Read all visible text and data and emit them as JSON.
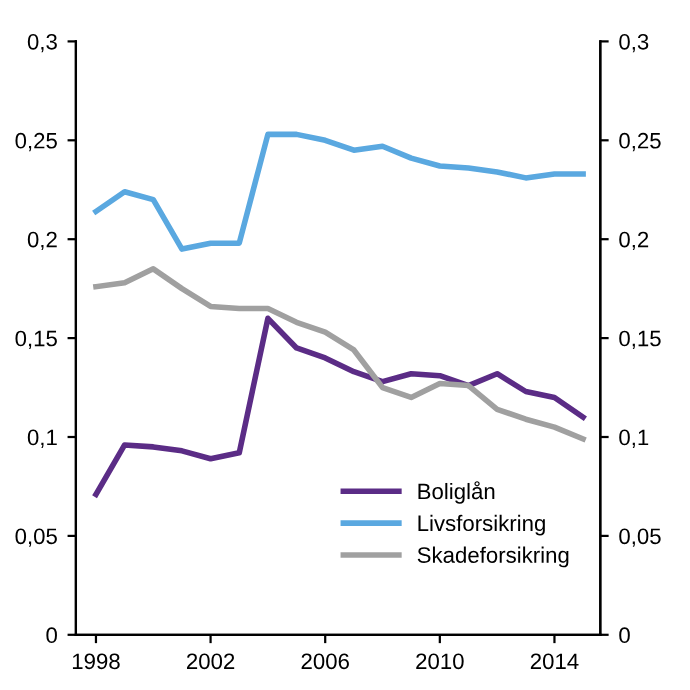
{
  "chart_data": {
    "type": "line",
    "x": [
      1998,
      1999,
      2000,
      2001,
      2002,
      2003,
      2004,
      2005,
      2006,
      2007,
      2008,
      2009,
      2010,
      2011,
      2012,
      2013,
      2014,
      2015
    ],
    "series": [
      {
        "name": "Boliglån",
        "color": "#5b2c86",
        "values": [
          0.071,
          0.096,
          0.095,
          0.093,
          0.089,
          0.092,
          0.16,
          0.145,
          0.14,
          0.133,
          0.128,
          0.132,
          0.131,
          0.126,
          0.132,
          0.123,
          0.12,
          0.11
        ]
      },
      {
        "name": "Livsforsikring",
        "color": "#5aa8e0",
        "values": [
          0.214,
          0.224,
          0.22,
          0.195,
          0.198,
          0.198,
          0.253,
          0.253,
          0.25,
          0.245,
          0.247,
          0.241,
          0.237,
          0.236,
          0.234,
          0.231,
          0.233,
          0.233
        ]
      },
      {
        "name": "Skadeforsikring",
        "color": "#a0a0a0",
        "values": [
          0.176,
          0.178,
          0.185,
          0.175,
          0.166,
          0.165,
          0.165,
          0.158,
          0.153,
          0.144,
          0.125,
          0.12,
          0.127,
          0.126,
          0.114,
          0.109,
          0.105,
          0.099
        ]
      }
    ],
    "xlim": [
      1997.3,
      2015.6
    ],
    "xticks": [
      1998,
      2002,
      2006,
      2010,
      2014
    ],
    "ylim": [
      0,
      0.3
    ],
    "yticks": [
      0,
      {
        "value": 0.05,
        "label": "0,05"
      },
      {
        "value": 0.1,
        "label": "0,1"
      },
      {
        "value": 0.15,
        "label": "0,15"
      },
      {
        "value": 0.2,
        "label": "0,2"
      },
      {
        "value": 0.25,
        "label": "0,25"
      },
      {
        "value": 0.3,
        "label": "0,3"
      }
    ],
    "y2lim": [
      0,
      0.3
    ],
    "y2ticks": [
      0,
      {
        "value": 0.05,
        "label": "0,05"
      },
      {
        "value": 0.1,
        "label": "0,1"
      },
      {
        "value": 0.15,
        "label": "0,15"
      },
      {
        "value": 0.2,
        "label": "0,2"
      },
      {
        "value": 0.25,
        "label": "0,25"
      },
      {
        "value": 0.3,
        "label": "0,3"
      }
    ],
    "legend": "bottom right",
    "grid": false,
    "marker": "none",
    "line_style": "solid"
  }
}
